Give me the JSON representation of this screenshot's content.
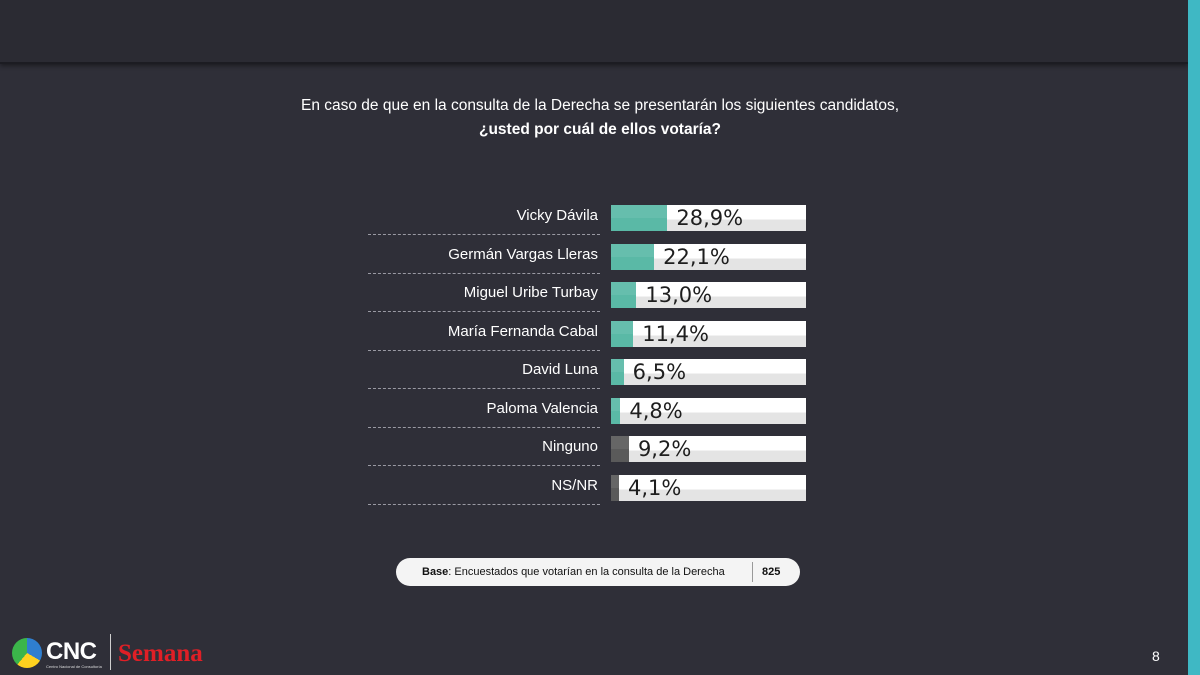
{
  "colors": {
    "background": "#2f2f38",
    "candidate_bar": "#5ab9a6",
    "other_bar": "#5a5a5a",
    "accent_stripe": "#3fb8c4",
    "brand_red": "#e01f26"
  },
  "question": {
    "line1": "En caso de que en la consulta de la Derecha se presentarán los siguientes candidatos,",
    "line2": "¿usted por cuál de ellos votaría?"
  },
  "chart_data": {
    "type": "bar",
    "orientation": "horizontal",
    "xlim": [
      0,
      100
    ],
    "unit": "%",
    "categories": [
      "Vicky Dávila",
      "Germán Vargas Lleras",
      "Miguel Uribe Turbay",
      "María Fernanda Cabal",
      "David Luna",
      "Paloma Valencia",
      "Ninguno",
      "NS/NR"
    ],
    "values": [
      28.9,
      22.1,
      13.0,
      11.4,
      6.5,
      4.8,
      9.2,
      4.1
    ],
    "value_labels": [
      "28,9%",
      "22,1%",
      "13,0%",
      "11,4%",
      "6,5%",
      "4,8%",
      "9,2%",
      "4,1%"
    ],
    "bar_colors": [
      "#5ab9a6",
      "#5ab9a6",
      "#5ab9a6",
      "#5ab9a6",
      "#5ab9a6",
      "#5ab9a6",
      "#5a5a5a",
      "#5a5a5a"
    ]
  },
  "base": {
    "label": "Base",
    "text": ": Encuestados que votarían en la consulta de la Derecha",
    "count": "825"
  },
  "logos": {
    "cnc": "CNC",
    "cnc_sub": "Centro Nacional de Consultoría",
    "semana": "Semana"
  },
  "page_number": "8"
}
